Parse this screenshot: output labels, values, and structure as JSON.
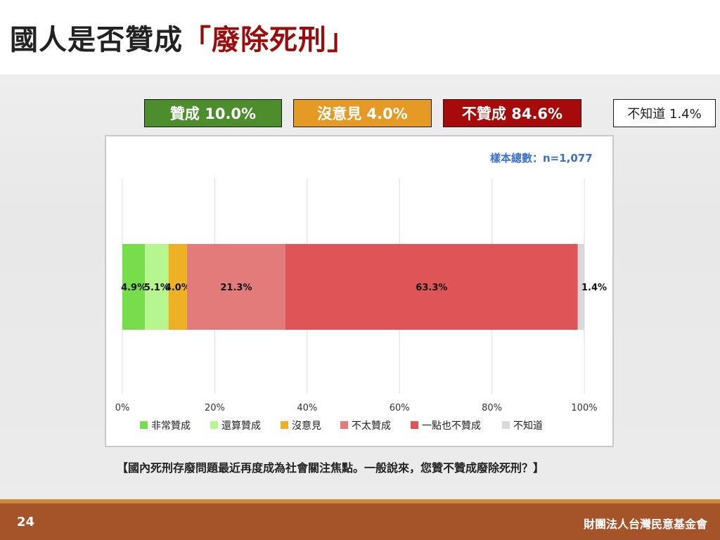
{
  "slide": {
    "title_main": "國人是否贊成",
    "title_accent": "「廢除死刑」",
    "page_number": "24",
    "organization": "財團法人台灣民意基金會",
    "question": "【國內死刑存廢問題最近再度成為社會關注焦點。一般說來，您贊不贊成廢除死刑？】"
  },
  "summary": {
    "approve": "贊成 10.0%",
    "neutral": "沒意見 4.0%",
    "oppose": "不贊成 84.6%",
    "unknown": "不知道 1.4%"
  },
  "colors": {
    "approve": "#4d8d2d",
    "neutral": "#e49a24",
    "oppose": "#a60a0a",
    "title_accent": "#9b0d0d",
    "footer": "#a5542a",
    "sample_note": "#3c6fcf"
  },
  "chart_data": {
    "type": "bar",
    "orientation": "horizontal",
    "stacked": true,
    "sample_note": "樣本總數：n=1,077",
    "xlim": [
      0,
      100
    ],
    "x_ticks": [
      "0%",
      "20%",
      "40%",
      "60%",
      "80%",
      "100%"
    ],
    "grid": true,
    "legend_position": "bottom",
    "series": [
      {
        "name": "非常贊成",
        "value": 4.9,
        "label": "4.9%",
        "color": "#77dd4c"
      },
      {
        "name": "還算贊成",
        "value": 5.1,
        "label": "5.1%",
        "color": "#b7f58e"
      },
      {
        "name": "沒意見",
        "value": 4.0,
        "label": "4.0%",
        "color": "#eeb126"
      },
      {
        "name": "不太贊成",
        "value": 21.3,
        "label": "21.3%",
        "color": "#e37b7b"
      },
      {
        "name": "一點也不贊成",
        "value": 63.3,
        "label": "63.3%",
        "color": "#df5557"
      },
      {
        "name": "不知道",
        "value": 1.4,
        "label": "1.4%",
        "color": "#d9d9d9"
      }
    ]
  }
}
